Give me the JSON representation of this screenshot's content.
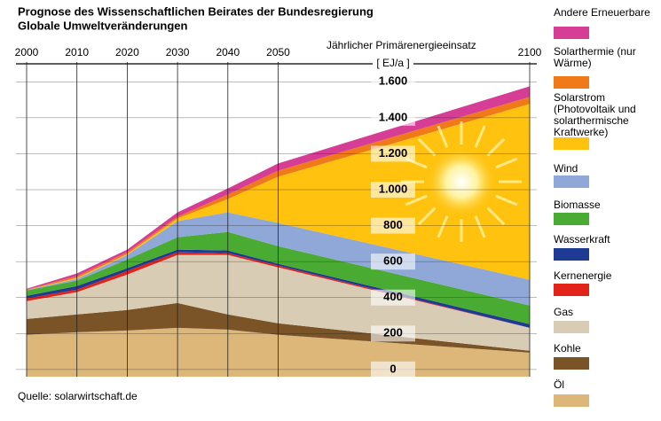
{
  "chart_data": {
    "type": "stacked_area",
    "title": "Prognose des Wissenschaftlichen Beirates der Bundesregierung",
    "subtitle": "Globale Umweltveränderungen",
    "y_label": "Jährlicher Primärenergieeinsatz",
    "y_unit": "[ EJ/a ]",
    "source": "Quelle: solarwirtschaft.de",
    "x": [
      2000,
      2010,
      2020,
      2030,
      2040,
      2050,
      2100
    ],
    "xlim": [
      2000,
      2100
    ],
    "xticks": [
      2000,
      2010,
      2020,
      2030,
      2040,
      2050,
      2100
    ],
    "ylim": [
      -40,
      1700
    ],
    "yticks": [
      0,
      200,
      400,
      600,
      800,
      {
        "value": 1000,
        "label": "1.000"
      },
      {
        "value": 1200,
        "label": "1.200"
      },
      {
        "value": 1400,
        "label": "1.400"
      },
      {
        "value": 1600,
        "label": "1.600"
      }
    ],
    "grid": true,
    "series": [
      {
        "name": "Öl",
        "color": "#ddb77a",
        "values": [
          193,
          207,
          217,
          232,
          222,
          193,
          94
        ]
      },
      {
        "name": "Kohle",
        "color": "#7a5426",
        "values": [
          88,
          99,
          114,
          138,
          84,
          64,
          10
        ]
      },
      {
        "name": "Gas",
        "color": "#d8ccb4",
        "values": [
          99,
          124,
          197,
          267,
          331,
          311,
          128
        ]
      },
      {
        "name": "Kernenergie",
        "color": "#e2231a",
        "values": [
          15,
          14,
          20,
          15,
          10,
          10,
          0
        ]
      },
      {
        "name": "Wasserkraft",
        "color": "#1f3a93",
        "values": [
          15,
          20,
          15,
          15,
          15,
          10,
          20
        ]
      },
      {
        "name": "Biomasse",
        "color": "#4aab32",
        "values": [
          30,
          30,
          49,
          69,
          103,
          98,
          104
        ]
      },
      {
        "name": "Wind",
        "color": "#8fa8d8",
        "values": [
          2,
          10,
          25,
          89,
          109,
          129,
          143
        ]
      },
      {
        "name": "Solarstrom (Photovoltaik und solarthermische Kraftwerke)",
        "color": "#ffc20e",
        "values": [
          0,
          5,
          5,
          15,
          74,
          257,
          978
        ]
      },
      {
        "name": "Solarthermie (nur Wärme)",
        "color": "#f07a1a",
        "values": [
          2,
          10,
          10,
          9,
          25,
          34,
          39
        ]
      },
      {
        "name": "Andere Erneuerbare",
        "color": "#d63d95",
        "values": [
          5,
          15,
          15,
          25,
          34,
          40,
          59
        ]
      }
    ]
  }
}
